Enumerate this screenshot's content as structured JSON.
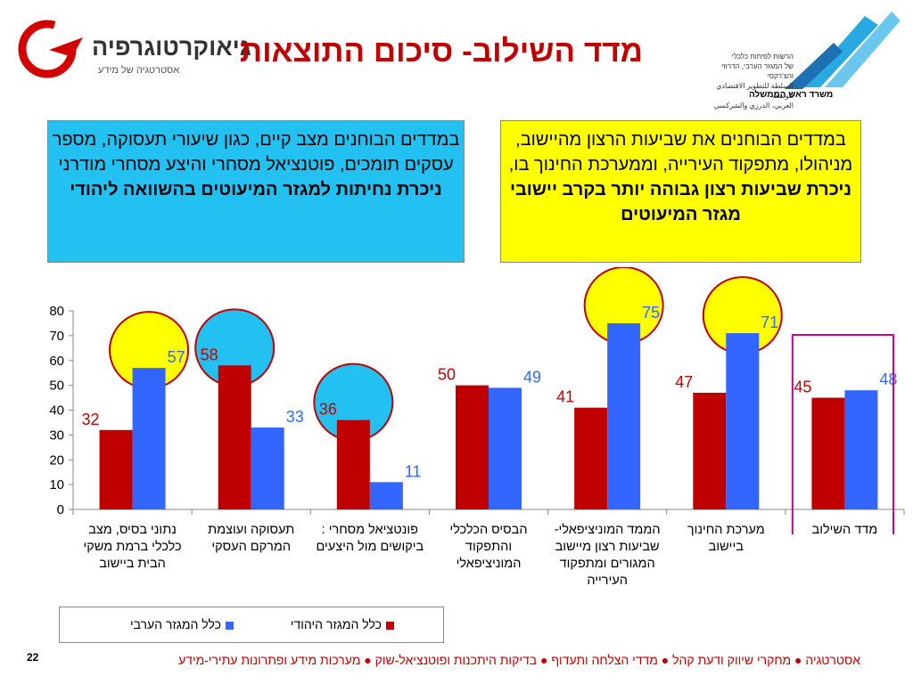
{
  "title": "מדד השילוב- סיכום התוצאות",
  "logo_left": {
    "brand": "גיאוקרטוגרפיה",
    "tagline": "אסטרטגיה של מידע"
  },
  "logo_right": {
    "lines": [
      "הרשות לפיתוח כלכלי",
      "של המגזר הערבי, הדרוזי והצ'רקסי",
      "السلطة للتطوير الاقتصادي للوسط",
      "العربي، الدرزي والشركسي"
    ],
    "office": "משרד ראש הממשלה"
  },
  "box_left": {
    "text": "במדדים הבוחנים מצב קיים, כגון שיעורי תעסוקה, מספר עסקים תומכים, פוטנציאל מסחרי והיצע מסחרי מודרני",
    "emphasis": "ניכרת נחיתות למגזר המיעוטים בהשוואה ליהודי"
  },
  "box_right": {
    "text": "במדדים הבוחנים את שביעות הרצון מהיישוב, מניהולו, מתפקוד העירייה, וממערכת החינוך בו,",
    "emphasis": "ניכרת שביעות רצון גבוהה יותר בקרב יישובי מגזר המיעוטים"
  },
  "chart_data": {
    "type": "bar",
    "categories": [
      "נתוני בסיס, מצב כלכלי ברמת משקי הבית ביישוב",
      "תעסוקה ועוצמת המרקם העסקי",
      "פונטציאל מסחרי : ביקושים מול היצעים",
      "הבסיס הכלכלי והתפקוד המוניציפאלי",
      "הממד המוניציפאלי- שביעות רצון מיישוב המגורים ומתפקוד העירייה",
      "מערכת החינוך ביישוב",
      "מדד השילוב"
    ],
    "series": [
      {
        "name": "כלל המגזר היהודי",
        "values": [
          32,
          58,
          36,
          50,
          41,
          47,
          45
        ],
        "color": "#c00000"
      },
      {
        "name": "כלל המגזר הערבי",
        "values": [
          57,
          33,
          11,
          49,
          75,
          71,
          48
        ],
        "color": "#3366ff"
      }
    ],
    "ylim": [
      0,
      80
    ],
    "yticks": [
      0,
      10,
      20,
      30,
      40,
      50,
      60,
      70,
      80
    ],
    "grid": false,
    "legend": "bottom",
    "highlight_circles": [
      {
        "category": 0,
        "series": 1,
        "color": "#ffff00"
      },
      {
        "category": 1,
        "series": 0,
        "color": "#22c1f2"
      },
      {
        "category": 2,
        "series": 0,
        "color": "#22c1f2"
      },
      {
        "category": 4,
        "series": 1,
        "color": "#ffff00"
      },
      {
        "category": 5,
        "series": 1,
        "color": "#ffff00"
      }
    ],
    "highlight_box_category": 6
  },
  "footer": "אסטרטגיה ● מחקרי שיווק ודעת קהל ● מדדי הצלחה ותעדוף ● בדיקות היתכנות ופוטנציאל-שוק ● מערכות מידע ופתרונות עתירי-מידע",
  "page_number": "22",
  "colors": {
    "title": "#c00000",
    "box_left_bg": "#22c1f2",
    "box_right_bg": "#ffff00",
    "jewish": "#c00000",
    "arab": "#3366ff"
  }
}
